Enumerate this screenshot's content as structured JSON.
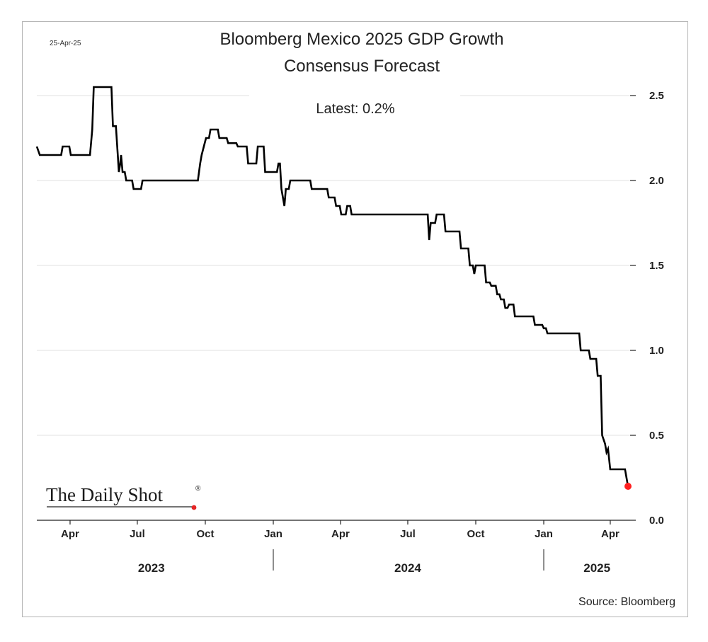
{
  "chart_data": {
    "type": "line",
    "date_stamp": "25-Apr-25",
    "title_lines": [
      "Bloomberg Mexico 2025 GDP Growth",
      "Consensus Forecast"
    ],
    "annotation": "Latest:  0.2%",
    "source": "Source: Bloomberg",
    "watermark": "The Daily Shot",
    "watermark_mark": "®",
    "ylim": [
      0,
      2.5
    ],
    "y_ticks": [
      "2.5",
      "2.0",
      "1.5",
      "1.0",
      "0.5",
      "0.0"
    ],
    "x_ticks": [
      {
        "label": "Apr",
        "date": "2023-04-01"
      },
      {
        "label": "Jul",
        "date": "2023-07-01"
      },
      {
        "label": "Oct",
        "date": "2023-10-01"
      },
      {
        "label": "Jan",
        "date": "2024-01-01"
      },
      {
        "label": "Apr",
        "date": "2024-04-01"
      },
      {
        "label": "Jul",
        "date": "2024-07-01"
      },
      {
        "label": "Oct",
        "date": "2024-10-01"
      },
      {
        "label": "Jan",
        "date": "2025-01-01"
      },
      {
        "label": "Apr",
        "date": "2025-04-01"
      }
    ],
    "years": [
      "2023",
      "2024",
      "2025"
    ],
    "grid": true,
    "latest_marker_color": "#ff2020",
    "line_color": "#000000",
    "series": [
      {
        "points": [
          [
            "2023-02-15",
            2.2
          ],
          [
            "2023-02-19",
            2.15
          ],
          [
            "2023-03-20",
            2.15
          ],
          [
            "2023-03-22",
            2.2
          ],
          [
            "2023-03-31",
            2.2
          ],
          [
            "2023-04-02",
            2.15
          ],
          [
            "2023-04-28",
            2.15
          ],
          [
            "2023-05-01",
            2.3
          ],
          [
            "2023-05-03",
            2.55
          ],
          [
            "2023-05-27",
            2.55
          ],
          [
            "2023-05-29",
            2.32
          ],
          [
            "2023-06-02",
            2.32
          ],
          [
            "2023-06-06",
            2.05
          ],
          [
            "2023-06-08",
            2.1
          ],
          [
            "2023-06-09",
            2.15
          ],
          [
            "2023-06-11",
            2.05
          ],
          [
            "2023-06-14",
            2.05
          ],
          [
            "2023-06-16",
            2.0
          ],
          [
            "2023-06-24",
            2.0
          ],
          [
            "2023-06-26",
            1.95
          ],
          [
            "2023-07-06",
            1.95
          ],
          [
            "2023-07-08",
            2.0
          ],
          [
            "2023-09-21",
            2.0
          ],
          [
            "2023-09-24",
            2.1
          ],
          [
            "2023-09-26",
            2.15
          ],
          [
            "2023-09-29",
            2.2
          ],
          [
            "2023-10-02",
            2.25
          ],
          [
            "2023-10-06",
            2.25
          ],
          [
            "2023-10-08",
            2.3
          ],
          [
            "2023-10-18",
            2.3
          ],
          [
            "2023-10-20",
            2.25
          ],
          [
            "2023-10-30",
            2.25
          ],
          [
            "2023-11-01",
            2.22
          ],
          [
            "2023-11-12",
            2.22
          ],
          [
            "2023-11-14",
            2.2
          ],
          [
            "2023-11-26",
            2.2
          ],
          [
            "2023-11-28",
            2.1
          ],
          [
            "2023-12-09",
            2.1
          ],
          [
            "2023-12-11",
            2.2
          ],
          [
            "2023-12-19",
            2.2
          ],
          [
            "2023-12-21",
            2.05
          ],
          [
            "2024-01-06",
            2.05
          ],
          [
            "2024-01-08",
            2.1
          ],
          [
            "2024-01-10",
            2.1
          ],
          [
            "2024-01-12",
            1.95
          ],
          [
            "2024-01-14",
            1.9
          ],
          [
            "2024-01-16",
            1.85
          ],
          [
            "2024-01-18",
            1.95
          ],
          [
            "2024-01-22",
            1.95
          ],
          [
            "2024-01-24",
            2.0
          ],
          [
            "2024-02-20",
            2.0
          ],
          [
            "2024-02-22",
            1.95
          ],
          [
            "2024-03-14",
            1.95
          ],
          [
            "2024-03-16",
            1.9
          ],
          [
            "2024-03-24",
            1.9
          ],
          [
            "2024-03-26",
            1.85
          ],
          [
            "2024-03-31",
            1.85
          ],
          [
            "2024-04-02",
            1.8
          ],
          [
            "2024-04-08",
            1.8
          ],
          [
            "2024-04-10",
            1.85
          ],
          [
            "2024-04-14",
            1.85
          ],
          [
            "2024-04-16",
            1.8
          ],
          [
            "2024-07-28",
            1.8
          ],
          [
            "2024-07-30",
            1.65
          ],
          [
            "2024-08-01",
            1.75
          ],
          [
            "2024-08-07",
            1.75
          ],
          [
            "2024-08-09",
            1.8
          ],
          [
            "2024-08-19",
            1.8
          ],
          [
            "2024-08-21",
            1.7
          ],
          [
            "2024-09-09",
            1.7
          ],
          [
            "2024-09-11",
            1.6
          ],
          [
            "2024-09-21",
            1.6
          ],
          [
            "2024-09-23",
            1.5
          ],
          [
            "2024-09-27",
            1.5
          ],
          [
            "2024-09-29",
            1.45
          ],
          [
            "2024-10-01",
            1.5
          ],
          [
            "2024-10-13",
            1.5
          ],
          [
            "2024-10-15",
            1.4
          ],
          [
            "2024-10-20",
            1.4
          ],
          [
            "2024-10-22",
            1.38
          ],
          [
            "2024-10-28",
            1.38
          ],
          [
            "2024-10-30",
            1.33
          ],
          [
            "2024-11-02",
            1.33
          ],
          [
            "2024-11-04",
            1.3
          ],
          [
            "2024-11-08",
            1.3
          ],
          [
            "2024-11-10",
            1.25
          ],
          [
            "2024-11-13",
            1.25
          ],
          [
            "2024-11-15",
            1.27
          ],
          [
            "2024-11-21",
            1.27
          ],
          [
            "2024-11-23",
            1.2
          ],
          [
            "2024-12-18",
            1.2
          ],
          [
            "2024-12-20",
            1.15
          ],
          [
            "2024-12-30",
            1.15
          ],
          [
            "2025-01-01",
            1.13
          ],
          [
            "2025-01-04",
            1.13
          ],
          [
            "2025-01-06",
            1.1
          ],
          [
            "2025-02-18",
            1.1
          ],
          [
            "2025-02-20",
            1.0
          ],
          [
            "2025-03-03",
            1.0
          ],
          [
            "2025-03-05",
            0.95
          ],
          [
            "2025-03-13",
            0.95
          ],
          [
            "2025-03-15",
            0.85
          ],
          [
            "2025-03-19",
            0.85
          ],
          [
            "2025-03-21",
            0.5
          ],
          [
            "2025-03-25",
            0.45
          ],
          [
            "2025-03-27",
            0.4
          ],
          [
            "2025-03-29",
            0.42
          ],
          [
            "2025-04-01",
            0.3
          ],
          [
            "2025-04-21",
            0.3
          ],
          [
            "2025-04-25",
            0.2
          ]
        ]
      }
    ]
  }
}
